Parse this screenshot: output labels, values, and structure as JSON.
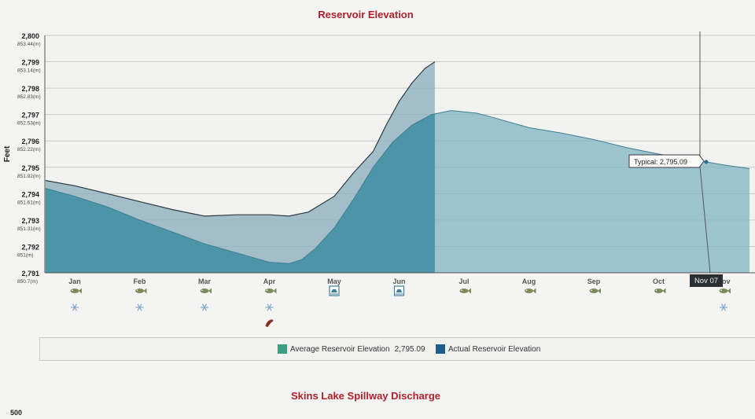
{
  "page": {
    "title": "Reservoir Elevation",
    "second_chart_title": "Skins Lake Spillway Discharge",
    "second_chart_first_tick": "500"
  },
  "chart_data": {
    "type": "area",
    "title": "Reservoir Elevation",
    "ylabel": "Feet",
    "ylim": [
      2791,
      2800
    ],
    "grid": true,
    "y_ticks": [
      {
        "ft": "2,800",
        "m": "853.44(m)",
        "value": 2800
      },
      {
        "ft": "2,799",
        "m": "853.14(m)",
        "value": 2799
      },
      {
        "ft": "2,798",
        "m": "852.83(m)",
        "value": 2798
      },
      {
        "ft": "2,797",
        "m": "852.53(m)",
        "value": 2797
      },
      {
        "ft": "2,796",
        "m": "852.22(m)",
        "value": 2796
      },
      {
        "ft": "2,795",
        "m": "851.92(m)",
        "value": 2795
      },
      {
        "ft": "2,794",
        "m": "851.61(m)",
        "value": 2794
      },
      {
        "ft": "2,793",
        "m": "851.31(m)",
        "value": 2793
      },
      {
        "ft": "2,792",
        "m": "851(m)",
        "value": 2792
      },
      {
        "ft": "2,791",
        "m": "850.7(m)",
        "value": 2791
      }
    ],
    "x_ticks": [
      "Jan",
      "Feb",
      "Mar",
      "Apr",
      "May",
      "Jun",
      "Jul",
      "Aug",
      "Sep",
      "Oct",
      "Nov"
    ],
    "x_domain": [
      0,
      10.7
    ],
    "series": [
      {
        "name": "Average Reservoir Elevation",
        "color": "#4f9aa8",
        "x": [
          -0.45,
          0,
          0.5,
          1,
          1.5,
          2,
          2.5,
          3,
          3.3,
          3.5,
          3.7,
          4,
          4.3,
          4.6,
          4.9,
          5.2,
          5.5,
          5.8,
          6.2,
          6.5,
          7,
          7.5,
          8,
          8.5,
          9,
          9.5,
          10,
          10.4
        ],
        "values": [
          2794.2,
          2793.9,
          2793.5,
          2793.0,
          2792.55,
          2792.1,
          2791.75,
          2791.4,
          2791.35,
          2791.5,
          2791.9,
          2792.7,
          2793.8,
          2795.0,
          2795.95,
          2796.6,
          2797.0,
          2797.15,
          2797.05,
          2796.85,
          2796.5,
          2796.3,
          2796.05,
          2795.75,
          2795.5,
          2795.3,
          2795.09,
          2794.95
        ]
      },
      {
        "name": "Actual Reservoir Elevation",
        "color": "#1f6f8b",
        "x": [
          -0.45,
          0,
          0.5,
          1,
          1.5,
          2,
          2.5,
          3,
          3.3,
          3.6,
          4,
          4.3,
          4.6,
          4.8,
          5,
          5.2,
          5.4,
          5.55
        ],
        "values": [
          2794.5,
          2794.3,
          2794.0,
          2793.7,
          2793.4,
          2793.15,
          2793.2,
          2793.2,
          2793.15,
          2793.3,
          2793.9,
          2794.8,
          2795.6,
          2796.6,
          2797.5,
          2798.2,
          2798.75,
          2799.0
        ]
      }
    ],
    "legend": [
      {
        "name": "Average Reservoir Elevation",
        "value": "2,795.09",
        "color": "#3e9e84"
      },
      {
        "name": "Actual Reservoir Elevation",
        "value": "",
        "color": "#1f5e8a"
      }
    ],
    "legend_placement": "bottom",
    "tooltip": "Typical: 2,795.09",
    "crosshair_label": "Nov 07",
    "crosshair_x": 10.1,
    "icon_rows": {
      "fish": [
        "Jan",
        "Feb",
        "Mar",
        "Apr",
        "Jul",
        "Aug",
        "Sep",
        "Oct",
        "Nov"
      ],
      "snowflake": [
        "Jan",
        "Feb",
        "Mar",
        "Apr",
        "Nov"
      ],
      "boat-ramp": [
        "May",
        "Jun"
      ],
      "spawn": [
        "Apr"
      ]
    }
  }
}
